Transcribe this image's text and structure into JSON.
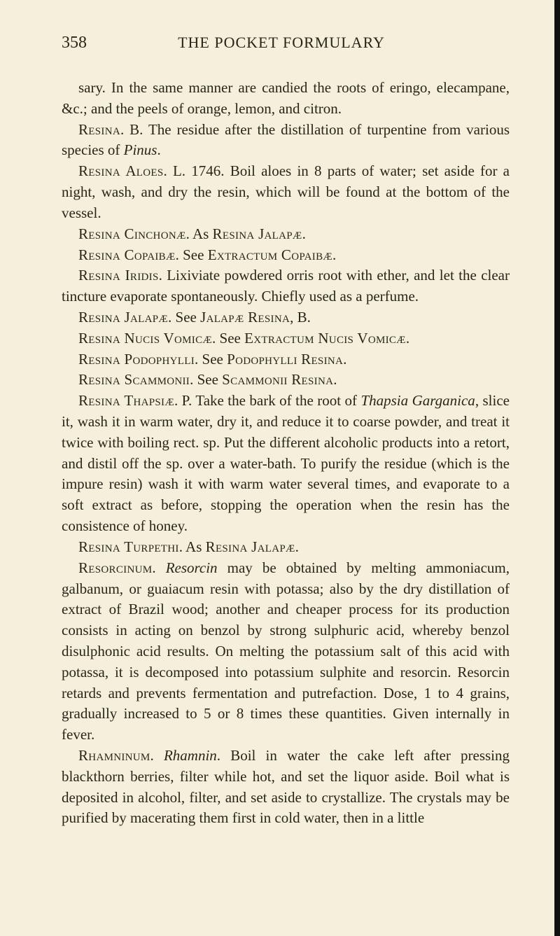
{
  "page_number": "358",
  "page_title": "THE POCKET FORMULARY",
  "entries": {
    "p1": {
      "pre": "sary. In the same manner are candied the roots of eringo, elecampane, &c.; and the peels of orange, lemon, and citron."
    },
    "p2": {
      "head": "Resina",
      "text": ". B. The residue after the distillation of turpentine from various species of ",
      "ital": "Pinus",
      "tail": "."
    },
    "p3": {
      "head": "Resina Aloes",
      "text": ". L. 1746. Boil aloes in 8 parts of water; set aside for a night, wash, and dry the resin, which will be found at the bottom of the vessel."
    },
    "p4": {
      "head": "Resina Cinchonæ",
      "text": ". As ",
      "head2": "Resina Jalapæ",
      "tail": "."
    },
    "p5": {
      "head": "Resina Copaibæ",
      "text": ". See ",
      "head2": "Extractum Copaibæ",
      "tail": "."
    },
    "p6": {
      "head": "Resina Iridis",
      "text": ". Lixiviate powdered orris root with ether, and let the clear tincture evaporate spontaneously. Chiefly used as a perfume."
    },
    "p7": {
      "head": "Resina Jalapæ",
      "text": ". See ",
      "head2": "Jalapæ Resina",
      "tail": ", B."
    },
    "p8": {
      "head": "Resina Nucis Vomicæ",
      "text": ". See ",
      "head2": "Extractum Nucis Vomicæ",
      "tail": "."
    },
    "p9": {
      "head": "Resina Podophylli",
      "text": ". See ",
      "head2": "Podophylli Resina",
      "tail": "."
    },
    "p10": {
      "head": "Resina Scammonii",
      "text": ". See ",
      "head2": "Scammonii Resina",
      "tail": "."
    },
    "p11": {
      "head": "Resina Thapsiæ",
      "text": ". P. Take the bark of the root of ",
      "ital": "Thapsia Garganica",
      "tail": ", slice it, wash it in warm water, dry it, and reduce it to coarse powder, and treat it twice with boiling rect. sp. Put the different alcoholic products into a retort, and distil off the sp. over a water-bath. To purify the residue (which is the impure resin) wash it with warm water several times, and evaporate to a soft extract as before, stopping the operation when the resin has the consistence of honey."
    },
    "p12": {
      "head": "Resina Turpethi",
      "text": ". As ",
      "head2": "Resina Jalapæ",
      "tail": "."
    },
    "p13": {
      "head": "Resorcinum",
      "text": ". ",
      "ital": "Resorcin",
      "tail": " may be obtained by melting ammoniacum, galbanum, or guaiacum resin with potassa; also by the dry distillation of extract of Brazil wood; another and cheaper process for its production consists in acting on benzol by strong sulphuric acid, whereby benzol disulphonic acid results. On melting the potassium salt of this acid with potassa, it is decomposed into potassium sulphite and resorcin. Resorcin retards and prevents fermentation and putrefaction. Dose, 1 to 4 grains, gradually increased to 5 or 8 times these quantities. Given internally in fever."
    },
    "p14": {
      "head": "Rhamninum",
      "text": ". ",
      "ital": "Rhamnin",
      "tail": ". Boil in water the cake left after pressing blackthorn berries, filter while hot, and set the liquor aside. Boil what is deposited in alcohol, filter, and set aside to crystallize. The crystals may be purified by macerating them first in cold water, then in a little"
    }
  }
}
